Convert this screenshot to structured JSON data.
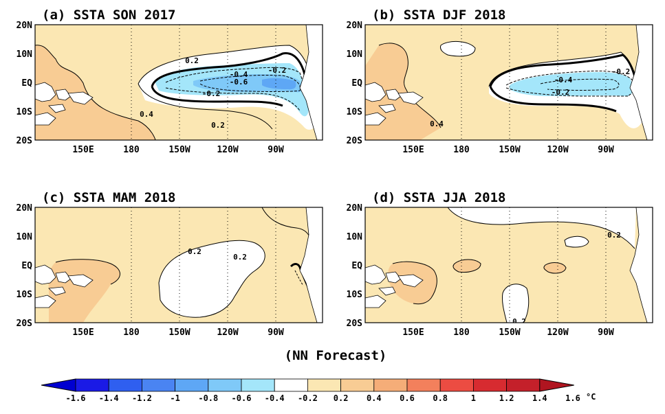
{
  "figure": {
    "caption": "(NN Forecast)",
    "lat_ticks": [
      "20N",
      "10N",
      "EQ",
      "10S",
      "20S"
    ],
    "lon_ticks": [
      "150E",
      "180",
      "150W",
      "120W",
      "90W"
    ]
  },
  "panels": [
    {
      "id": "a",
      "title": "(a) SSTA  SON 2017",
      "contour_labels": [
        "0.2",
        "-0.4",
        "-0.2",
        "-0.6",
        "-0.2",
        "0.4",
        "0.2"
      ]
    },
    {
      "id": "b",
      "title": "(b) SSTA  DJF 2018",
      "contour_labels": [
        "-0.4",
        "-0.2",
        "-0.2",
        "0.4"
      ]
    },
    {
      "id": "c",
      "title": "(c) SSTA  MAM 2018",
      "contour_labels": [
        "0.2",
        "0.2"
      ]
    },
    {
      "id": "d",
      "title": "(d) SSTA  JJA 2018",
      "contour_labels": [
        "0.2",
        "0.2"
      ]
    }
  ],
  "colorbar": {
    "unit": "°C",
    "labels": [
      "-1.6",
      "-1.4",
      "-1.2",
      "-1",
      "-0.8",
      "-0.6",
      "-0.4",
      "-0.2",
      "0.2",
      "0.4",
      "0.6",
      "0.8",
      "1",
      "1.2",
      "1.4",
      "1.6"
    ],
    "colors": [
      "#1a1ae6",
      "#2f5ff0",
      "#4a84f2",
      "#5ea7f5",
      "#7fc9f8",
      "#a4e6fa",
      "#ffffff",
      "#fbe7b3",
      "#f8cc94",
      "#f5ad78",
      "#f3805c",
      "#ec4c42",
      "#d72b30",
      "#c4202a"
    ],
    "end_colors": {
      "low": "#0000d0",
      "high": "#b01520"
    }
  },
  "colors": {
    "pale_warm": "#fbe7b3",
    "warm": "#f8cc94",
    "cool_1": "#a4e6fa",
    "cool_2": "#7fc9f8",
    "cool_3": "#5ea7f5"
  }
}
